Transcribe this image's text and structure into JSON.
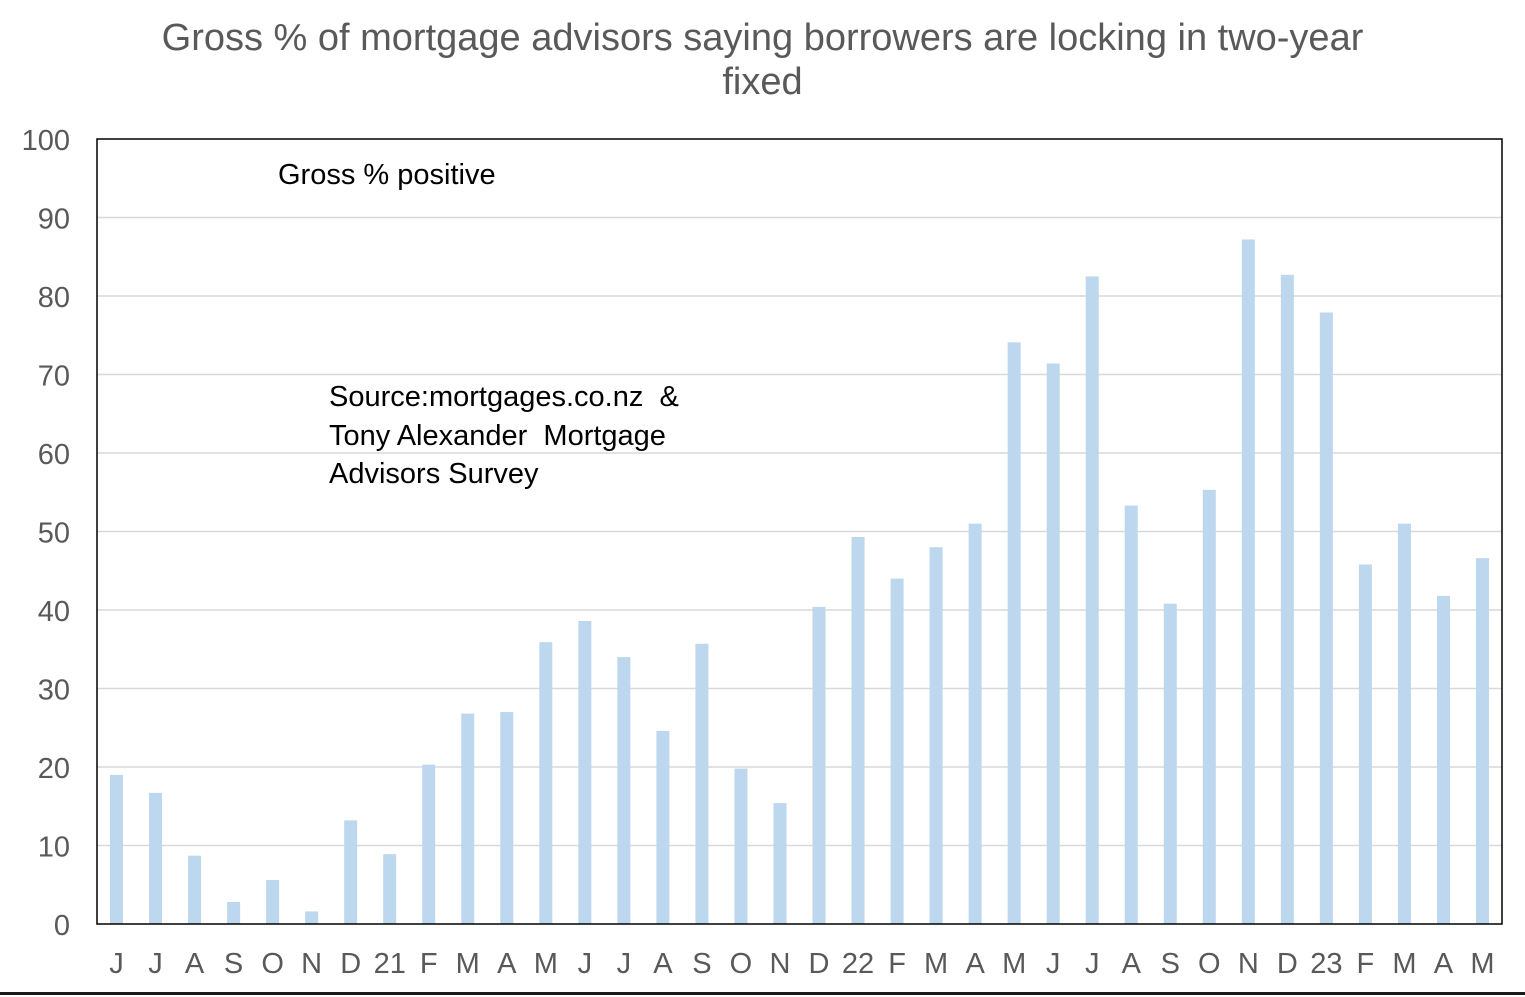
{
  "chart_data": {
    "type": "bar",
    "title": "Gross % of mortgage advisors saying borrowers are locking in two-year fixed",
    "xlabel": "",
    "ylabel": "",
    "ylim": [
      0,
      100
    ],
    "yticks": [
      0,
      10,
      20,
      30,
      40,
      50,
      60,
      70,
      80,
      90,
      100
    ],
    "grid": true,
    "categories": [
      "J",
      "J",
      "A",
      "S",
      "O",
      "N",
      "D",
      "21",
      "F",
      "M",
      "A",
      "M",
      "J",
      "J",
      "A",
      "S",
      "O",
      "N",
      "D",
      "22",
      "F",
      "M",
      "A",
      "M",
      "J",
      "J",
      "A",
      "S",
      "O",
      "N",
      "D",
      "23",
      "F",
      "M",
      "A",
      "M"
    ],
    "series": [
      {
        "values": [
          19,
          16.7,
          8.7,
          2.8,
          5.6,
          1.6,
          13.2,
          8.9,
          20.3,
          26.8,
          27,
          35.9,
          38.6,
          34,
          24.6,
          35.7,
          19.8,
          15.4,
          40.4,
          49.3,
          44,
          48,
          51,
          74.1,
          71.4,
          82.5,
          53.3,
          40.8,
          55.3,
          87.2,
          82.7,
          77.9,
          45.8,
          51,
          41.8,
          46.6
        ],
        "color": "#bdd7ee"
      }
    ],
    "annotations": [
      "Gross % positive",
      "Source:mortgages.co.nz  &",
      "Tony Alexander  Mortgage",
      "Advisors Survey"
    ]
  }
}
